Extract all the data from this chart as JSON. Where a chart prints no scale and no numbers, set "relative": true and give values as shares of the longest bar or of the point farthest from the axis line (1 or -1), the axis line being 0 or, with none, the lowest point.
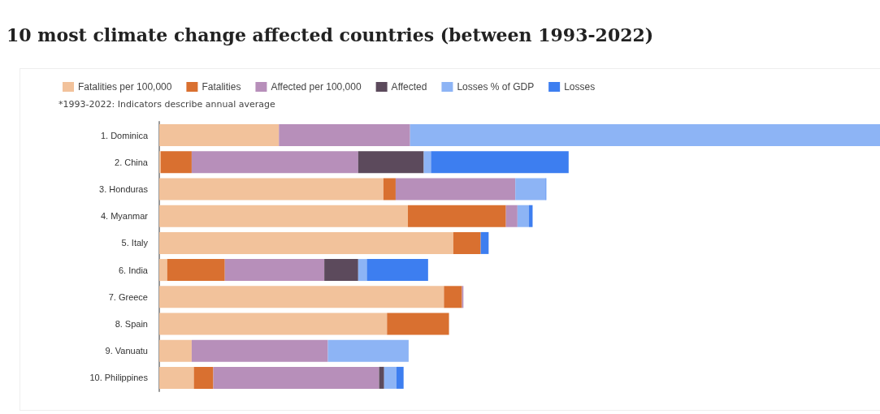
{
  "chart_data": {
    "type": "bar",
    "orientation": "horizontal",
    "stacked": true,
    "relative": true,
    "title": "10 most climate change affected countries (between 1993-2022)",
    "annotations": [
      "*1993-2022: Indicators describe  annual average"
    ],
    "categories": [
      "1. Dominica",
      "2. China",
      "3. Honduras",
      "4. Myanmar",
      "5. Italy",
      "6. India",
      "7. Greece",
      "8. Spain",
      "9. Vanuatu",
      "10. Philippines"
    ],
    "series": [
      {
        "name": "Fatalities per 100,000",
        "color": "#f2c29b",
        "values": [
          0.166,
          0.002,
          0.311,
          0.345,
          0.408,
          0.011,
          0.395,
          0.316,
          0.045,
          0.048
        ]
      },
      {
        "name": "Fatalities",
        "color": "#d97030",
        "values": [
          0,
          0.043,
          0.017,
          0.136,
          0.038,
          0.08,
          0.025,
          0.086,
          0,
          0.027
        ]
      },
      {
        "name": "Affected per 100,000",
        "color": "#b78fba",
        "values": [
          0.182,
          0.231,
          0.166,
          0.016,
          0,
          0.138,
          0.002,
          0,
          0.189,
          0.23
        ]
      },
      {
        "name": "Affected",
        "color": "#5c4a5c",
        "values": [
          0,
          0.091,
          0,
          0,
          0,
          0.047,
          0,
          0,
          0,
          0.007
        ]
      },
      {
        "name": "Losses % of GDP",
        "color": "#8db4f5",
        "values": [
          0.652,
          0.01,
          0.042,
          0.016,
          null,
          0.012,
          0,
          0,
          0.112,
          0.017
        ]
      },
      {
        "name": "Losses",
        "color": "#3d7ef0",
        "values": [
          0,
          0.191,
          0.001,
          0.005,
          0.011,
          0.085,
          0,
          0,
          0,
          0.01
        ]
      }
    ],
    "legend": "top"
  }
}
